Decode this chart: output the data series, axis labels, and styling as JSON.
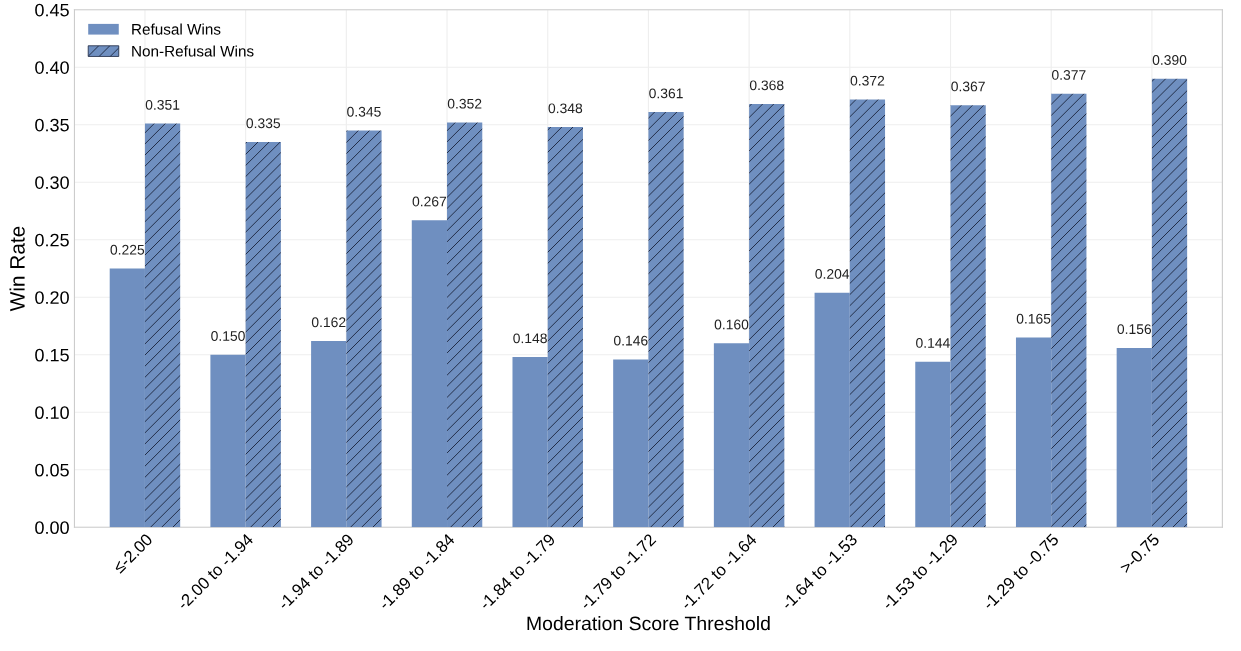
{
  "chart_data": {
    "type": "bar",
    "xlabel": "Moderation Score Threshold",
    "ylabel": "Win Rate",
    "categories": [
      "≤-2.00",
      "-2.00 to -1.94",
      "-1.94 to -1.89",
      "-1.89 to -1.84",
      "-1.84 to -1.79",
      "-1.79 to -1.72",
      "-1.72 to -1.64",
      "-1.64 to -1.53",
      "-1.53 to -1.29",
      "-1.29 to -0.75",
      ">-0.75"
    ],
    "series": [
      {
        "name": "Refusal Wins",
        "color": "#6f8fc0",
        "values": [
          0.225,
          0.15,
          0.162,
          0.267,
          0.148,
          0.146,
          0.16,
          0.204,
          0.144,
          0.165,
          0.156
        ],
        "value_labels": [
          "0.225",
          "0.150",
          "0.162",
          "0.267",
          "0.148",
          "0.146",
          "0.160",
          "0.204",
          "0.144",
          "0.165",
          "0.156"
        ]
      },
      {
        "name": "Non-Refusal Wins",
        "color": "#6f8fc0",
        "values": [
          0.351,
          0.335,
          0.345,
          0.352,
          0.348,
          0.361,
          0.368,
          0.372,
          0.367,
          0.377,
          0.39
        ],
        "value_labels": [
          "0.351",
          "0.335",
          "0.345",
          "0.352",
          "0.348",
          "0.361",
          "0.368",
          "0.372",
          "0.367",
          "0.377",
          "0.390"
        ]
      }
    ],
    "ylim": [
      0,
      0.45
    ],
    "yticks": [
      {
        "value": 0,
        "label": "0.00"
      },
      {
        "value": 0.05,
        "label": "0.05"
      },
      {
        "value": 0.1,
        "label": "0.10"
      },
      {
        "value": 0.15,
        "label": "0.15"
      },
      {
        "value": 0.2,
        "label": "0.20"
      },
      {
        "value": 0.25,
        "label": "0.25"
      },
      {
        "value": 0.3,
        "label": "0.30"
      },
      {
        "value": 0.35,
        "label": "0.35"
      },
      {
        "value": 0.4,
        "label": "0.40"
      },
      {
        "value": 0.45,
        "label": "0.45"
      }
    ],
    "grid": true,
    "legend": "top left"
  }
}
